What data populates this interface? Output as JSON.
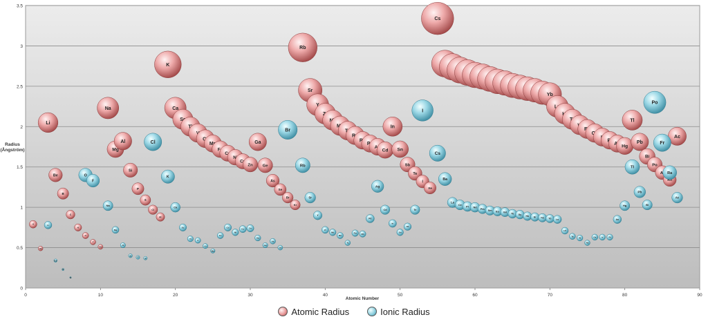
{
  "chart_data": {
    "type": "scatter",
    "bubble": true,
    "title": "",
    "xlabel": "Atomic Number",
    "ylabel_line1": "Radius",
    "ylabel_line2": "(Ångström)",
    "xlim": [
      0,
      90
    ],
    "ylim": [
      0,
      3.5
    ],
    "x_ticks": [
      "0",
      "10",
      "20",
      "30",
      "40",
      "50",
      "60",
      "70",
      "80",
      "90"
    ],
    "y_ticks": [
      "0",
      "0.5",
      "1",
      "1.5",
      "2",
      "2.5",
      "3",
      "3.5"
    ],
    "grid": true,
    "legend_position": "bottom",
    "colors": {
      "Atomic Radius": "#e89a9a",
      "Ionic Radius": "#8fd0df"
    },
    "series": [
      {
        "name": "Atomic Radius",
        "points": [
          {
            "label": "H",
            "x": 1,
            "y": 0.79
          },
          {
            "label": "He",
            "x": 2,
            "y": 0.49
          },
          {
            "label": "Li",
            "x": 3,
            "y": 2.05
          },
          {
            "label": "Be",
            "x": 4,
            "y": 1.4
          },
          {
            "label": "B",
            "x": 5,
            "y": 1.17
          },
          {
            "label": "C",
            "x": 6,
            "y": 0.91
          },
          {
            "label": "N",
            "x": 7,
            "y": 0.75
          },
          {
            "label": "O",
            "x": 8,
            "y": 0.65
          },
          {
            "label": "F",
            "x": 9,
            "y": 0.57
          },
          {
            "label": "Ne",
            "x": 10,
            "y": 0.51
          },
          {
            "label": "Na",
            "x": 11,
            "y": 2.23
          },
          {
            "label": "Mg",
            "x": 12,
            "y": 1.72
          },
          {
            "label": "Al",
            "x": 13,
            "y": 1.82
          },
          {
            "label": "Si",
            "x": 14,
            "y": 1.46
          },
          {
            "label": "P",
            "x": 15,
            "y": 1.23
          },
          {
            "label": "S",
            "x": 16,
            "y": 1.09
          },
          {
            "label": "Cl",
            "x": 17,
            "y": 0.97
          },
          {
            "label": "Ar",
            "x": 18,
            "y": 0.88
          },
          {
            "label": "K",
            "x": 19,
            "y": 2.77
          },
          {
            "label": "Ca",
            "x": 20,
            "y": 2.23
          },
          {
            "label": "Sc",
            "x": 21,
            "y": 2.09
          },
          {
            "label": "Ti",
            "x": 22,
            "y": 2.0
          },
          {
            "label": "V",
            "x": 23,
            "y": 1.92
          },
          {
            "label": "Cr",
            "x": 24,
            "y": 1.85
          },
          {
            "label": "Mn",
            "x": 25,
            "y": 1.79
          },
          {
            "label": "Fe",
            "x": 26,
            "y": 1.72
          },
          {
            "label": "Co",
            "x": 27,
            "y": 1.67
          },
          {
            "label": "Ni",
            "x": 28,
            "y": 1.62
          },
          {
            "label": "Cu",
            "x": 29,
            "y": 1.57
          },
          {
            "label": "Zn",
            "x": 30,
            "y": 1.53
          },
          {
            "label": "Ga",
            "x": 31,
            "y": 1.81
          },
          {
            "label": "Ge",
            "x": 32,
            "y": 1.52
          },
          {
            "label": "As",
            "x": 33,
            "y": 1.33
          },
          {
            "label": "Se",
            "x": 34,
            "y": 1.22
          },
          {
            "label": "Br",
            "x": 35,
            "y": 1.12
          },
          {
            "label": "Kr",
            "x": 36,
            "y": 1.03
          },
          {
            "label": "Rb",
            "x": 37,
            "y": 2.98
          },
          {
            "label": "Sr",
            "x": 38,
            "y": 2.45
          },
          {
            "label": "Y",
            "x": 39,
            "y": 2.27
          },
          {
            "label": "Zr",
            "x": 40,
            "y": 2.16
          },
          {
            "label": "Nb",
            "x": 41,
            "y": 2.08
          },
          {
            "label": "Mo",
            "x": 42,
            "y": 2.01
          },
          {
            "label": "Tc",
            "x": 43,
            "y": 1.95
          },
          {
            "label": "Ru",
            "x": 44,
            "y": 1.89
          },
          {
            "label": "Rh",
            "x": 45,
            "y": 1.83
          },
          {
            "label": "Pd",
            "x": 46,
            "y": 1.79
          },
          {
            "label": "Ag",
            "x": 47,
            "y": 1.75
          },
          {
            "label": "Cd",
            "x": 48,
            "y": 1.71
          },
          {
            "label": "In",
            "x": 49,
            "y": 2.0
          },
          {
            "label": "Sn",
            "x": 50,
            "y": 1.72
          },
          {
            "label": "Sb",
            "x": 51,
            "y": 1.53
          },
          {
            "label": "Te",
            "x": 52,
            "y": 1.42
          },
          {
            "label": "I",
            "x": 53,
            "y": 1.32
          },
          {
            "label": "Xe",
            "x": 54,
            "y": 1.24
          },
          {
            "label": "Cs",
            "x": 55,
            "y": 3.34
          },
          {
            "label": "Ba",
            "x": 56,
            "y": 2.78
          },
          {
            "label": "La",
            "x": 57,
            "y": 2.74
          },
          {
            "label": "Ce",
            "x": 58,
            "y": 2.7
          },
          {
            "label": "Pr",
            "x": 59,
            "y": 2.67
          },
          {
            "label": "Nd",
            "x": 60,
            "y": 2.64
          },
          {
            "label": "Pm",
            "x": 61,
            "y": 2.62
          },
          {
            "label": "Sm",
            "x": 62,
            "y": 2.59
          },
          {
            "label": "Eu",
            "x": 63,
            "y": 2.56
          },
          {
            "label": "Gd",
            "x": 64,
            "y": 2.54
          },
          {
            "label": "Tb",
            "x": 65,
            "y": 2.51
          },
          {
            "label": "Dy",
            "x": 66,
            "y": 2.49
          },
          {
            "label": "Ho",
            "x": 67,
            "y": 2.47
          },
          {
            "label": "Er",
            "x": 68,
            "y": 2.45
          },
          {
            "label": "Tm",
            "x": 69,
            "y": 2.42
          },
          {
            "label": "Yb",
            "x": 70,
            "y": 2.4
          },
          {
            "label": "Lu",
            "x": 71,
            "y": 2.25
          },
          {
            "label": "Hf",
            "x": 72,
            "y": 2.16
          },
          {
            "label": "Ta",
            "x": 73,
            "y": 2.09
          },
          {
            "label": "W",
            "x": 74,
            "y": 2.02
          },
          {
            "label": "Re",
            "x": 75,
            "y": 1.97
          },
          {
            "label": "Os",
            "x": 76,
            "y": 1.92
          },
          {
            "label": "Ir",
            "x": 77,
            "y": 1.87
          },
          {
            "label": "Pt",
            "x": 78,
            "y": 1.83
          },
          {
            "label": "Au",
            "x": 79,
            "y": 1.79
          },
          {
            "label": "Hg",
            "x": 80,
            "y": 1.76
          },
          {
            "label": "Tl",
            "x": 81,
            "y": 2.08
          },
          {
            "label": "Pb",
            "x": 82,
            "y": 1.81
          },
          {
            "label": "Bi",
            "x": 83,
            "y": 1.63
          },
          {
            "label": "Po",
            "x": 84,
            "y": 1.53
          },
          {
            "label": "At",
            "x": 85,
            "y": 1.43
          },
          {
            "label": "Rn",
            "x": 86,
            "y": 1.34
          },
          {
            "label": "Ac",
            "x": 87,
            "y": 1.88
          }
        ]
      },
      {
        "name": "Ionic Radius",
        "points": [
          {
            "label": "Li",
            "x": 3,
            "y": 0.78
          },
          {
            "label": "Be",
            "x": 4,
            "y": 0.34
          },
          {
            "label": "B",
            "x": 5,
            "y": 0.23
          },
          {
            "label": "N",
            "x": 6,
            "y": 0.13
          },
          {
            "label": "O",
            "x": 8,
            "y": 1.4
          },
          {
            "label": "F",
            "x": 9,
            "y": 1.33
          },
          {
            "label": "Na",
            "x": 11,
            "y": 1.02
          },
          {
            "label": "Mg",
            "x": 12,
            "y": 0.72
          },
          {
            "label": "Al",
            "x": 13,
            "y": 0.53
          },
          {
            "label": "Si",
            "x": 14,
            "y": 0.4
          },
          {
            "label": "P",
            "x": 15,
            "y": 0.38
          },
          {
            "label": "S",
            "x": 16,
            "y": 0.37
          },
          {
            "label": "Cl",
            "x": 17,
            "y": 1.81
          },
          {
            "label": "K",
            "x": 19,
            "y": 1.38
          },
          {
            "label": "Ca",
            "x": 20,
            "y": 1.0
          },
          {
            "label": "Sc",
            "x": 21,
            "y": 0.75
          },
          {
            "label": "Ti",
            "x": 22,
            "y": 0.61
          },
          {
            "label": "V",
            "x": 23,
            "y": 0.59
          },
          {
            "label": "Cr",
            "x": 24,
            "y": 0.52
          },
          {
            "label": "Mn",
            "x": 25,
            "y": 0.46
          },
          {
            "label": "Fe",
            "x": 26,
            "y": 0.65
          },
          {
            "label": "Co",
            "x": 27,
            "y": 0.75
          },
          {
            "label": "Ni",
            "x": 28,
            "y": 0.69
          },
          {
            "label": "Cu",
            "x": 29,
            "y": 0.73
          },
          {
            "label": "Zn",
            "x": 30,
            "y": 0.74
          },
          {
            "label": "Ga",
            "x": 31,
            "y": 0.62
          },
          {
            "label": "Ge",
            "x": 32,
            "y": 0.53
          },
          {
            "label": "As",
            "x": 33,
            "y": 0.58
          },
          {
            "label": "Se",
            "x": 34,
            "y": 0.5
          },
          {
            "label": "Br",
            "x": 35,
            "y": 1.96
          },
          {
            "label": "Rb",
            "x": 37,
            "y": 1.52
          },
          {
            "label": "Sr",
            "x": 38,
            "y": 1.12
          },
          {
            "label": "Y",
            "x": 39,
            "y": 0.9
          },
          {
            "label": "Zr",
            "x": 40,
            "y": 0.72
          },
          {
            "label": "Nb",
            "x": 41,
            "y": 0.69
          },
          {
            "label": "Mo",
            "x": 42,
            "y": 0.65
          },
          {
            "label": "Tc",
            "x": 43,
            "y": 0.56
          },
          {
            "label": "Ru",
            "x": 44,
            "y": 0.68
          },
          {
            "label": "Rh",
            "x": 45,
            "y": 0.67
          },
          {
            "label": "Pd",
            "x": 46,
            "y": 0.86
          },
          {
            "label": "Ag",
            "x": 47,
            "y": 1.26
          },
          {
            "label": "Cd",
            "x": 48,
            "y": 0.97
          },
          {
            "label": "In",
            "x": 49,
            "y": 0.8
          },
          {
            "label": "Sn",
            "x": 50,
            "y": 0.69
          },
          {
            "label": "Sb",
            "x": 51,
            "y": 0.76
          },
          {
            "label": "Te",
            "x": 52,
            "y": 0.97
          },
          {
            "label": "I",
            "x": 53,
            "y": 2.2
          },
          {
            "label": "Cs",
            "x": 55,
            "y": 1.67
          },
          {
            "label": "Ba",
            "x": 56,
            "y": 1.35
          },
          {
            "label": "La",
            "x": 57,
            "y": 1.06
          },
          {
            "label": "Ce",
            "x": 58,
            "y": 1.03
          },
          {
            "label": "Pr",
            "x": 59,
            "y": 1.01
          },
          {
            "label": "Nd",
            "x": 60,
            "y": 1.0
          },
          {
            "label": "Pm",
            "x": 61,
            "y": 0.98
          },
          {
            "label": "Sm",
            "x": 62,
            "y": 0.96
          },
          {
            "label": "Eu",
            "x": 63,
            "y": 0.95
          },
          {
            "label": "Gd",
            "x": 64,
            "y": 0.94
          },
          {
            "label": "Tb",
            "x": 65,
            "y": 0.92
          },
          {
            "label": "Dy",
            "x": 66,
            "y": 0.91
          },
          {
            "label": "Ho",
            "x": 67,
            "y": 0.89
          },
          {
            "label": "Er",
            "x": 68,
            "y": 0.88
          },
          {
            "label": "Tm",
            "x": 69,
            "y": 0.87
          },
          {
            "label": "Yb",
            "x": 70,
            "y": 0.86
          },
          {
            "label": "Lu",
            "x": 71,
            "y": 0.85
          },
          {
            "label": "Hf",
            "x": 72,
            "y": 0.71
          },
          {
            "label": "Ta",
            "x": 73,
            "y": 0.64
          },
          {
            "label": "W",
            "x": 74,
            "y": 0.62
          },
          {
            "label": "Re",
            "x": 75,
            "y": 0.56
          },
          {
            "label": "Os",
            "x": 76,
            "y": 0.63
          },
          {
            "label": "Ir",
            "x": 77,
            "y": 0.63
          },
          {
            "label": "Pt",
            "x": 78,
            "y": 0.63
          },
          {
            "label": "Au",
            "x": 79,
            "y": 0.85
          },
          {
            "label": "Hg",
            "x": 80,
            "y": 1.02
          },
          {
            "label": "Tl",
            "x": 81,
            "y": 1.5
          },
          {
            "label": "Pb",
            "x": 82,
            "y": 1.19
          },
          {
            "label": "Bi",
            "x": 83,
            "y": 1.03
          },
          {
            "label": "Fr",
            "x": 85,
            "y": 1.8
          },
          {
            "label": "Po",
            "x": 84,
            "y": 2.3
          },
          {
            "label": "Ra",
            "x": 86,
            "y": 1.43
          },
          {
            "label": "Ac",
            "x": 87,
            "y": 1.12
          }
        ]
      }
    ]
  }
}
